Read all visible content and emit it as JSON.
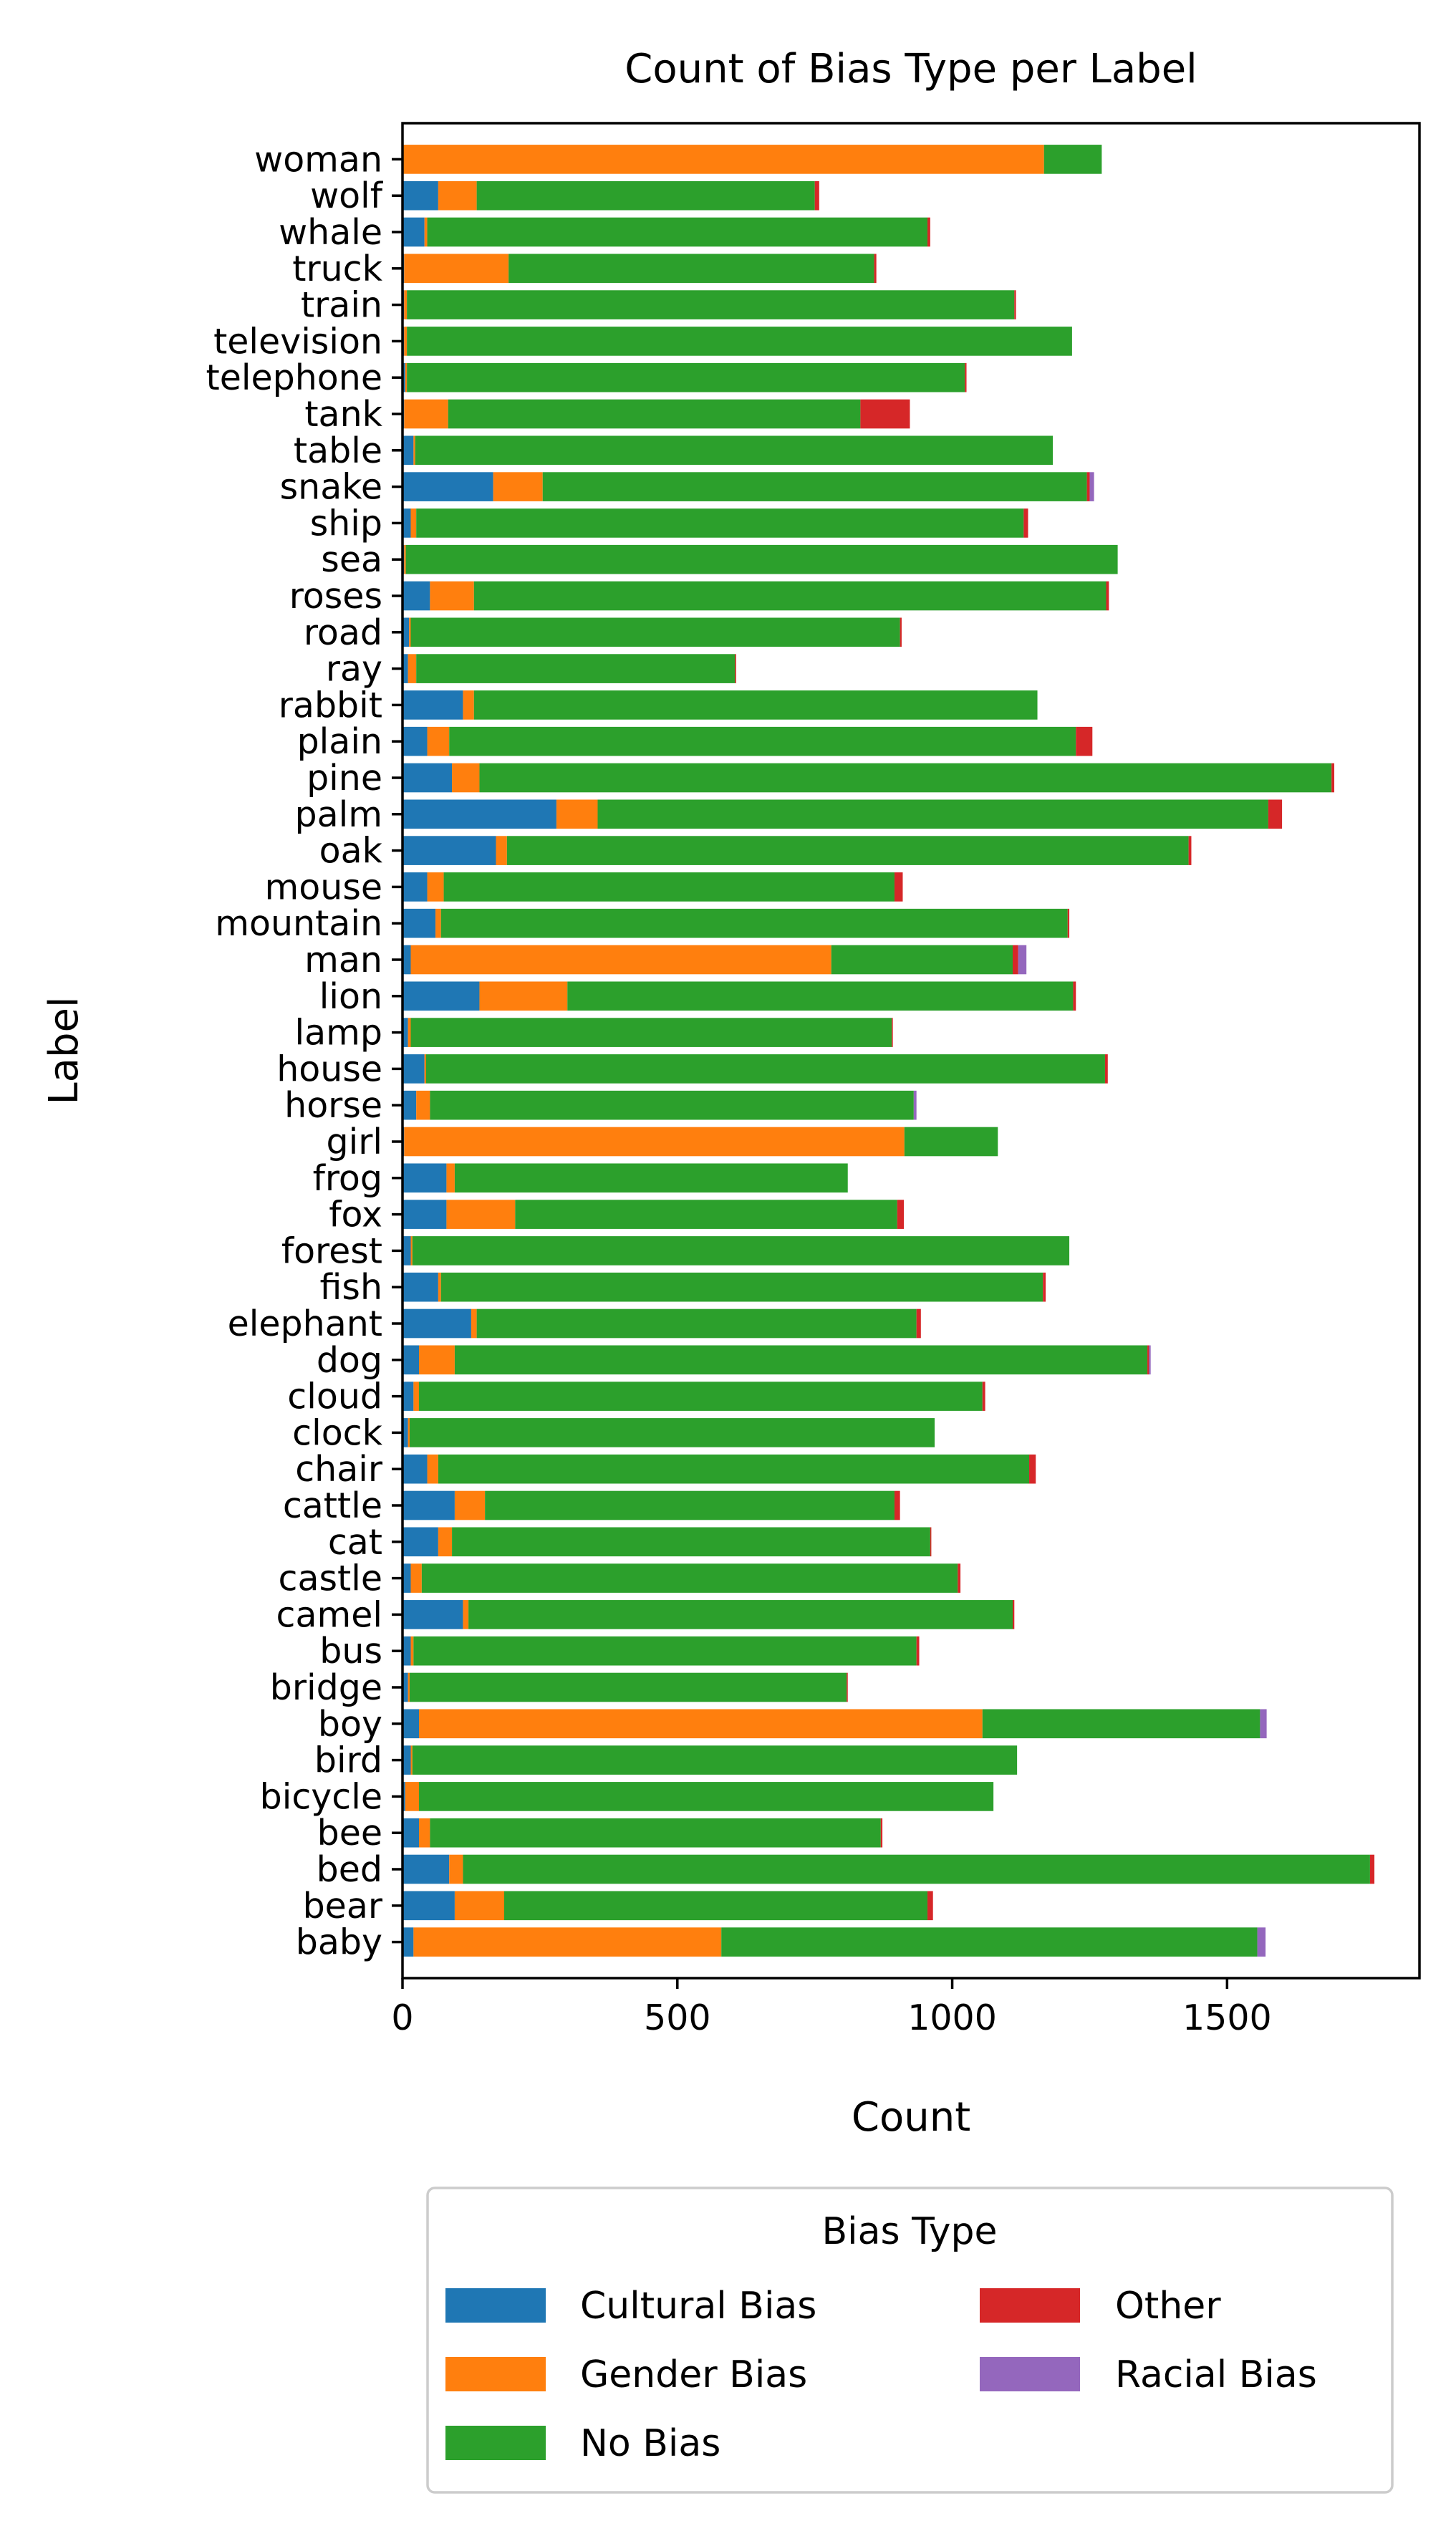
{
  "chart_data": {
    "type": "bar",
    "orientation": "horizontal",
    "stacked": true,
    "title": "Count of Bias Type per Label",
    "xlabel": "Count",
    "ylabel": "Label",
    "xlim": [
      0,
      1850
    ],
    "xticks": [
      0,
      500,
      1000,
      1500
    ],
    "xtick_labels": [
      "0",
      "500",
      "1000",
      "1500"
    ],
    "grid": false,
    "legend_position": "bottom (below plot)",
    "legend_title": "Bias Type",
    "categories": [
      "woman",
      "wolf",
      "whale",
      "truck",
      "train",
      "television",
      "telephone",
      "tank",
      "table",
      "snake",
      "ship",
      "sea",
      "roses",
      "road",
      "ray",
      "rabbit",
      "plain",
      "pine",
      "palm",
      "oak",
      "mouse",
      "mountain",
      "man",
      "lion",
      "lamp",
      "house",
      "horse",
      "girl",
      "frog",
      "fox",
      "forest",
      "fish",
      "elephant",
      "dog",
      "cloud",
      "clock",
      "chair",
      "cattle",
      "cat",
      "castle",
      "camel",
      "bus",
      "bridge",
      "boy",
      "bird",
      "bicycle",
      "bee",
      "bed",
      "bear",
      "baby"
    ],
    "series": [
      {
        "name": "Cultural Bias",
        "color": "#1f77b4",
        "values": [
          2,
          65,
          40,
          3,
          3,
          3,
          5,
          3,
          20,
          165,
          15,
          3,
          50,
          12,
          10,
          110,
          45,
          90,
          280,
          170,
          45,
          60,
          15,
          140,
          10,
          40,
          25,
          3,
          80,
          80,
          15,
          65,
          125,
          30,
          20,
          10,
          45,
          95,
          65,
          15,
          110,
          15,
          10,
          30,
          15,
          5,
          30,
          85,
          95,
          20
        ]
      },
      {
        "name": "Gender Bias",
        "color": "#ff7f0e",
        "values": [
          1165,
          70,
          5,
          190,
          5,
          5,
          3,
          80,
          3,
          90,
          10,
          3,
          80,
          3,
          15,
          20,
          40,
          50,
          75,
          20,
          30,
          10,
          765,
          160,
          5,
          3,
          25,
          910,
          15,
          125,
          3,
          5,
          10,
          65,
          10,
          3,
          20,
          55,
          25,
          20,
          10,
          5,
          3,
          1025,
          3,
          25,
          20,
          25,
          90,
          560
        ]
      },
      {
        "name": "No Bias",
        "color": "#2ca02c",
        "values": [
          105,
          615,
          910,
          665,
          1105,
          1210,
          1015,
          750,
          1160,
          990,
          1105,
          1295,
          1150,
          890,
          580,
          1025,
          1140,
          1550,
          1220,
          1240,
          820,
          1140,
          330,
          920,
          875,
          1235,
          880,
          170,
          715,
          695,
          1195,
          1095,
          800,
          1260,
          1025,
          955,
          1075,
          745,
          870,
          975,
          990,
          915,
          795,
          505,
          1100,
          1045,
          820,
          1650,
          770,
          975
        ]
      },
      {
        "name": "Other",
        "color": "#d62728",
        "values": [
          0,
          8,
          5,
          4,
          3,
          0,
          3,
          90,
          0,
          5,
          8,
          0,
          5,
          3,
          2,
          0,
          30,
          5,
          25,
          5,
          15,
          3,
          10,
          5,
          2,
          5,
          0,
          0,
          0,
          12,
          0,
          5,
          8,
          3,
          5,
          0,
          12,
          10,
          2,
          5,
          3,
          5,
          2,
          0,
          0,
          0,
          3,
          8,
          10,
          0
        ]
      },
      {
        "name": "Racial Bias",
        "color": "#9467bd",
        "values": [
          0,
          0,
          0,
          0,
          0,
          0,
          0,
          0,
          0,
          8,
          0,
          0,
          0,
          0,
          0,
          0,
          0,
          0,
          0,
          0,
          0,
          0,
          15,
          0,
          0,
          0,
          5,
          0,
          0,
          0,
          0,
          0,
          0,
          3,
          0,
          0,
          0,
          0,
          0,
          0,
          0,
          0,
          0,
          12,
          0,
          0,
          0,
          0,
          0,
          15
        ]
      }
    ]
  }
}
